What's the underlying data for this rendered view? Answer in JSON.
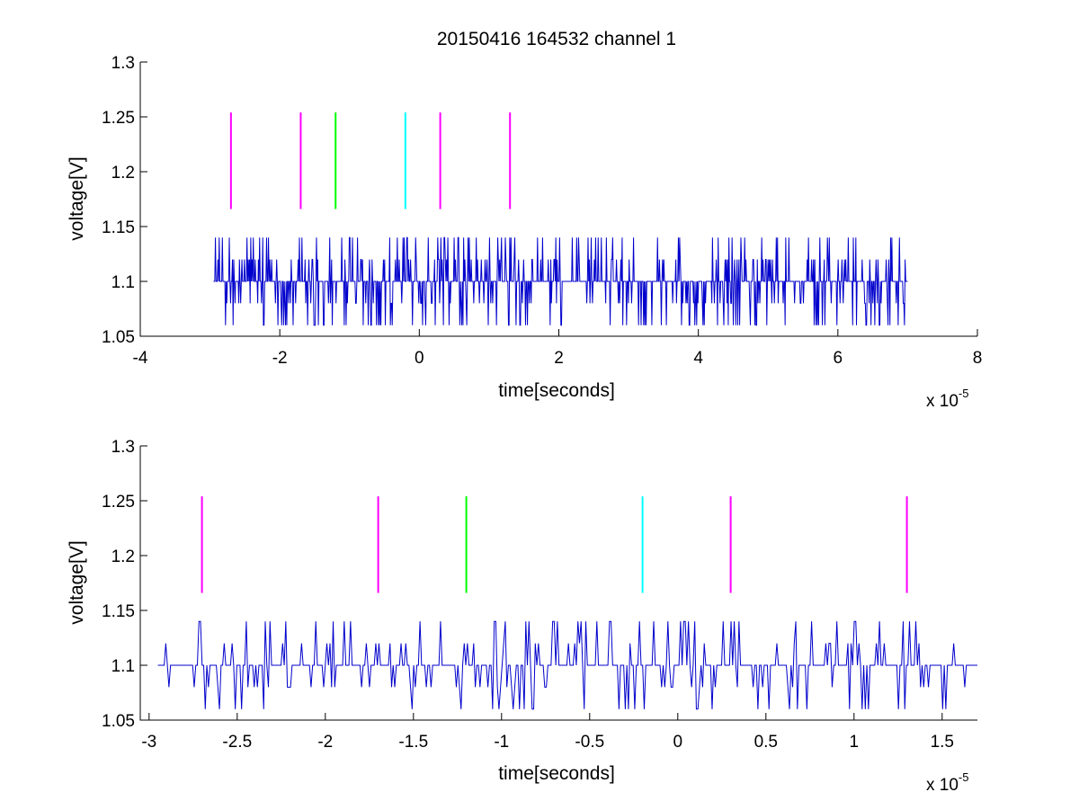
{
  "figure": {
    "title": "20150416 164532 channel 1"
  },
  "chart_data": [
    {
      "type": "line",
      "title": "20150416 164532 channel 1",
      "xlabel": "time[seconds]",
      "ylabel": "voltage[V]",
      "x_multiplier_base": "x 10",
      "x_multiplier_exp": "-5",
      "xlim": [
        -4,
        8
      ],
      "ylim": [
        1.05,
        1.3
      ],
      "xticks": [
        -4,
        -2,
        0,
        2,
        4,
        6,
        8
      ],
      "xtick_labels": [
        "-4",
        "-2",
        "0",
        "2",
        "4",
        "6",
        "8"
      ],
      "yticks": [
        1.05,
        1.1,
        1.15,
        1.2,
        1.25,
        1.3
      ],
      "ytick_labels": [
        "1.05",
        "1.1",
        "1.15",
        "1.2",
        "1.25",
        "1.3"
      ],
      "grid": false,
      "series": [
        {
          "color": "#0000cc",
          "x_range": [
            -2.95,
            7.0
          ],
          "levels": [
            1.06,
            1.08,
            1.1,
            1.12,
            1.14
          ],
          "baseline": 1.1
        }
      ],
      "markers": [
        {
          "x": -2.7,
          "y_range": [
            1.166,
            1.254
          ],
          "color": "#ff00ff"
        },
        {
          "x": -1.7,
          "y_range": [
            1.166,
            1.254
          ],
          "color": "#ff00ff"
        },
        {
          "x": -1.2,
          "y_range": [
            1.166,
            1.254
          ],
          "color": "#00ff00"
        },
        {
          "x": -0.2,
          "y_range": [
            1.166,
            1.254
          ],
          "color": "#00ffff"
        },
        {
          "x": 0.3,
          "y_range": [
            1.166,
            1.254
          ],
          "color": "#ff00ff"
        },
        {
          "x": 1.3,
          "y_range": [
            1.166,
            1.254
          ],
          "color": "#ff00ff"
        }
      ]
    },
    {
      "type": "line",
      "xlabel": "time[seconds]",
      "ylabel": "voltage[V]",
      "x_multiplier_base": "x 10",
      "x_multiplier_exp": "-5",
      "xlim": [
        -3.05,
        1.7
      ],
      "ylim": [
        1.05,
        1.3
      ],
      "xticks": [
        -3,
        -2.5,
        -2,
        -1.5,
        -1,
        -0.5,
        0,
        0.5,
        1,
        1.5
      ],
      "xtick_labels": [
        "-3",
        "-2.5",
        "-2",
        "-1.5",
        "-1",
        "-0.5",
        "0",
        "0.5",
        "1",
        "1.5"
      ],
      "yticks": [
        1.05,
        1.1,
        1.15,
        1.2,
        1.25,
        1.3
      ],
      "ytick_labels": [
        "1.05",
        "1.1",
        "1.15",
        "1.2",
        "1.25",
        "1.3"
      ],
      "grid": false,
      "series": [
        {
          "color": "#0000cc",
          "x_range": [
            -2.95,
            1.7
          ],
          "levels": [
            1.06,
            1.08,
            1.1,
            1.12,
            1.14
          ],
          "baseline": 1.1
        }
      ],
      "markers": [
        {
          "x": -2.7,
          "y_range": [
            1.166,
            1.254
          ],
          "color": "#ff00ff"
        },
        {
          "x": -1.7,
          "y_range": [
            1.166,
            1.254
          ],
          "color": "#ff00ff"
        },
        {
          "x": -1.2,
          "y_range": [
            1.166,
            1.254
          ],
          "color": "#00ff00"
        },
        {
          "x": -0.2,
          "y_range": [
            1.166,
            1.254
          ],
          "color": "#00ffff"
        },
        {
          "x": 0.3,
          "y_range": [
            1.166,
            1.254
          ],
          "color": "#ff00ff"
        },
        {
          "x": 1.3,
          "y_range": [
            1.166,
            1.254
          ],
          "color": "#ff00ff"
        }
      ]
    }
  ]
}
